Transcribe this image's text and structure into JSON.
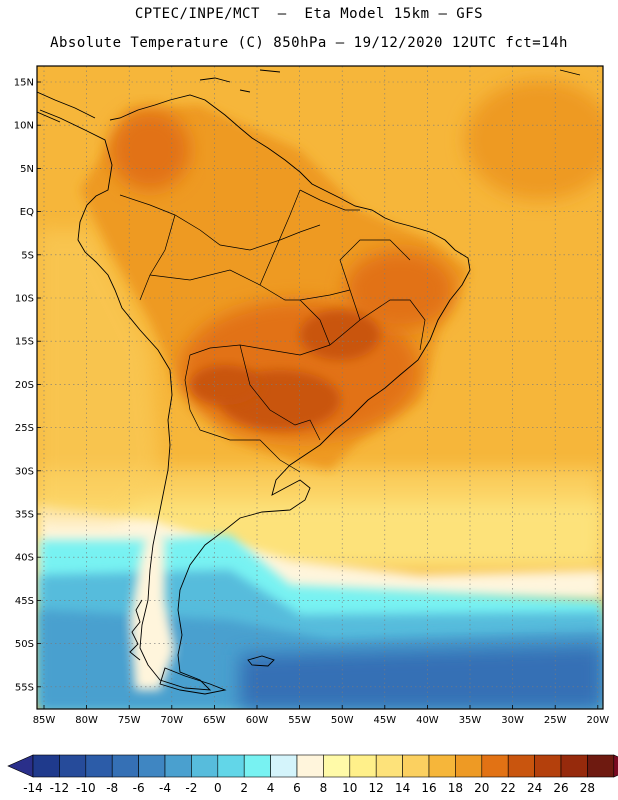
{
  "header": {
    "line1": "CPTEC/INPE/MCT  –  Eta Model 15km – GFS",
    "line2": "Absolute Temperature (C) 850hPa – 19/12/2020 12UTC fct=14h"
  },
  "map": {
    "lat_labels": [
      "15N",
      "10N",
      "5N",
      "EQ",
      "5S",
      "10S",
      "15S",
      "20S",
      "25S",
      "30S",
      "35S",
      "40S",
      "45S",
      "50S",
      "55S"
    ],
    "lon_labels": [
      "85W",
      "80W",
      "75W",
      "70W",
      "65W",
      "60W",
      "55W",
      "50W",
      "45W",
      "40W",
      "35W",
      "30W",
      "25W",
      "20W"
    ]
  },
  "colorbar": {
    "ticks": [
      "-14",
      "-12",
      "-10",
      "-8",
      "-6",
      "-4",
      "-2",
      "0",
      "2",
      "4",
      "6",
      "8",
      "10",
      "12",
      "14",
      "16",
      "18",
      "20",
      "22",
      "24",
      "26",
      "28"
    ],
    "colors": [
      "#1f3a8c",
      "#264b9a",
      "#2c5ca8",
      "#3570b5",
      "#3f86c2",
      "#4aa0cf",
      "#57bcdc",
      "#62d6e8",
      "#78f2f2",
      "#d4f4fb",
      "#fff5dc",
      "#fffaa8",
      "#fff08a",
      "#fde27a",
      "#fbd060",
      "#f6b63a",
      "#ee9a24",
      "#e27214",
      "#c9550e",
      "#b4400c",
      "#962a0c",
      "#6e1a10"
    ],
    "underflow_color": "#2a2f8a",
    "overflow_color": "#7a0a22"
  }
}
